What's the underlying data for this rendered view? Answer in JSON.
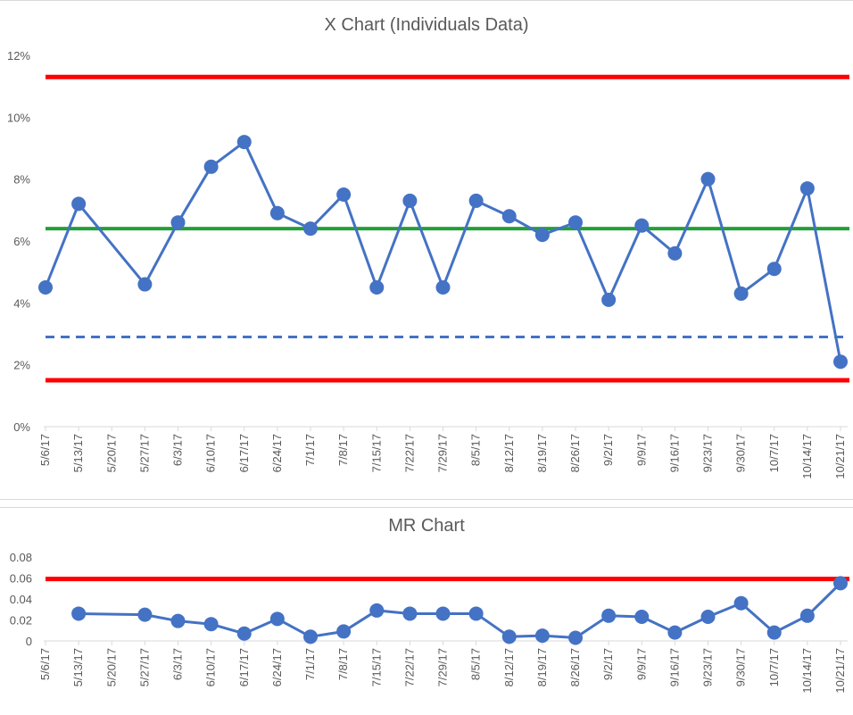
{
  "chart_data": [
    {
      "type": "line",
      "title": "X Chart (Individuals Data)",
      "categories": [
        "5/6/17",
        "5/13/17",
        "5/20/17",
        "5/27/17",
        "6/3/17",
        "6/10/17",
        "6/17/17",
        "6/24/17",
        "7/1/17",
        "7/8/17",
        "7/15/17",
        "7/22/17",
        "7/29/17",
        "8/5/17",
        "8/12/17",
        "8/19/17",
        "8/26/17",
        "9/2/17",
        "9/9/17",
        "9/16/17",
        "9/23/17",
        "9/30/17",
        "10/7/17",
        "10/14/17",
        "10/21/17"
      ],
      "yticks": [
        "0%",
        "2%",
        "4%",
        "6%",
        "8%",
        "10%",
        "12%"
      ],
      "ylim": [
        0,
        0.12
      ],
      "series": [
        {
          "role": "data",
          "color": "#4472c4",
          "values": [
            0.045,
            0.072,
            null,
            0.046,
            0.066,
            0.084,
            0.092,
            0.069,
            0.064,
            0.075,
            0.045,
            0.073,
            0.045,
            0.073,
            0.068,
            0.062,
            0.066,
            0.041,
            0.065,
            0.056,
            0.08,
            0.043,
            0.051,
            0.077,
            0.021
          ]
        }
      ],
      "reference_lines": [
        {
          "role": "upper-limit",
          "value": 0.113,
          "color": "#ff0000",
          "style": "solid"
        },
        {
          "role": "average",
          "value": 0.064,
          "color": "#21a038",
          "style": "solid"
        },
        {
          "role": "lower-threshold",
          "value": 0.029,
          "color": "#4472c4",
          "style": "dashed"
        },
        {
          "role": "lower-limit",
          "value": 0.015,
          "color": "#ff0000",
          "style": "solid"
        }
      ]
    },
    {
      "type": "line",
      "title": "MR Chart",
      "categories": [
        "5/6/17",
        "5/13/17",
        "5/20/17",
        "5/27/17",
        "6/3/17",
        "6/10/17",
        "6/17/17",
        "6/24/17",
        "7/1/17",
        "7/8/17",
        "7/15/17",
        "7/22/17",
        "7/29/17",
        "8/5/17",
        "8/12/17",
        "8/19/17",
        "8/26/17",
        "9/2/17",
        "9/9/17",
        "9/16/17",
        "9/23/17",
        "9/30/17",
        "10/7/17",
        "10/14/17",
        "10/21/17"
      ],
      "yticks": [
        "0",
        "0.02",
        "0.04",
        "0.06",
        "0.08"
      ],
      "ylim": [
        0,
        0.08
      ],
      "series": [
        {
          "role": "data",
          "color": "#4472c4",
          "values": [
            null,
            0.026,
            null,
            0.025,
            0.019,
            0.016,
            0.007,
            0.021,
            0.004,
            0.009,
            0.029,
            0.026,
            0.026,
            0.026,
            0.004,
            0.005,
            0.003,
            0.024,
            0.023,
            0.008,
            0.023,
            0.036,
            0.008,
            0.024,
            0.055
          ]
        }
      ],
      "reference_lines": [
        {
          "role": "upper-limit",
          "value": 0.059,
          "color": "#ff0000",
          "style": "solid"
        }
      ]
    }
  ]
}
